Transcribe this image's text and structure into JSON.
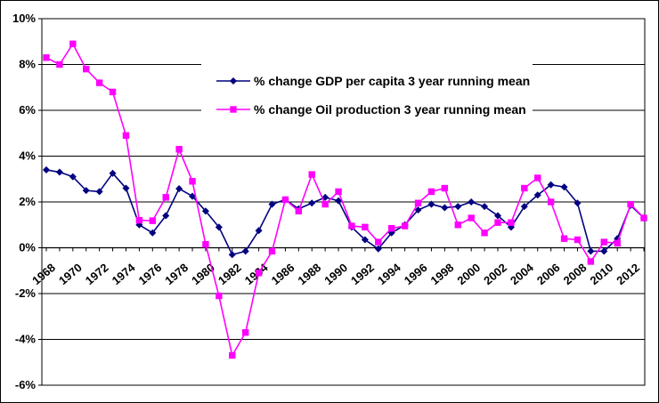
{
  "chart_data": {
    "type": "line",
    "title": "",
    "xlabel": "",
    "ylabel": "",
    "x": [
      1968,
      1969,
      1970,
      1971,
      1972,
      1973,
      1974,
      1975,
      1976,
      1977,
      1978,
      1979,
      1980,
      1981,
      1982,
      1983,
      1984,
      1985,
      1986,
      1987,
      1988,
      1989,
      1990,
      1991,
      1992,
      1993,
      1994,
      1995,
      1996,
      1997,
      1998,
      1999,
      2000,
      2001,
      2002,
      2003,
      2004,
      2005,
      2006,
      2007,
      2008,
      2009,
      2010,
      2011,
      2012,
      2013
    ],
    "x_tick_labels": [
      "1968",
      "1970",
      "1972",
      "1974",
      "1976",
      "1978",
      "1980",
      "1982",
      "1984",
      "1986",
      "1988",
      "1990",
      "1992",
      "1994",
      "1996",
      "1998",
      "2000",
      "2002",
      "2004",
      "2006",
      "2008",
      "2010",
      "2012"
    ],
    "y_tick_labels": [
      "10%",
      "8%",
      "6%",
      "4%",
      "2%",
      "0%",
      "-2%",
      "-4%",
      "-6%"
    ],
    "ylim": [
      -0.06,
      0.1
    ],
    "grid": true,
    "legend_position": "top-center",
    "series": [
      {
        "name": "% change GDP per capita 3 year running mean",
        "color": "#000080",
        "marker": "diamond",
        "values": [
          0.034,
          0.033,
          0.031,
          0.025,
          0.0245,
          0.0325,
          0.026,
          0.01,
          0.0065,
          0.014,
          0.0258,
          0.0225,
          0.016,
          0.009,
          -0.003,
          -0.0015,
          0.0075,
          0.019,
          0.021,
          0.017,
          0.0195,
          0.022,
          0.0205,
          0.009,
          0.0035,
          -0.0005,
          0.0065,
          0.01,
          0.0165,
          0.019,
          0.0175,
          0.018,
          0.02,
          0.018,
          0.014,
          0.009,
          0.018,
          0.023,
          0.0275,
          0.0265,
          0.0195,
          -0.0015,
          -0.0015,
          0.004,
          0.0185,
          0.013
        ]
      },
      {
        "name": "% change Oil production 3 year running mean",
        "color": "#FF00FF",
        "marker": "square",
        "values": [
          0.083,
          0.08,
          0.089,
          0.078,
          0.072,
          0.068,
          0.049,
          0.012,
          0.0118,
          0.022,
          0.043,
          0.029,
          0.0015,
          -0.021,
          -0.047,
          -0.037,
          -0.011,
          -0.0015,
          0.021,
          0.016,
          0.032,
          0.019,
          0.0245,
          0.0095,
          0.009,
          0.0025,
          0.0085,
          0.0095,
          0.0195,
          0.0245,
          0.026,
          0.01,
          0.013,
          0.0065,
          0.011,
          0.011,
          0.026,
          0.0305,
          0.02,
          0.004,
          0.0035,
          -0.006,
          0.0025,
          0.002,
          0.019,
          0.013
        ]
      }
    ]
  }
}
